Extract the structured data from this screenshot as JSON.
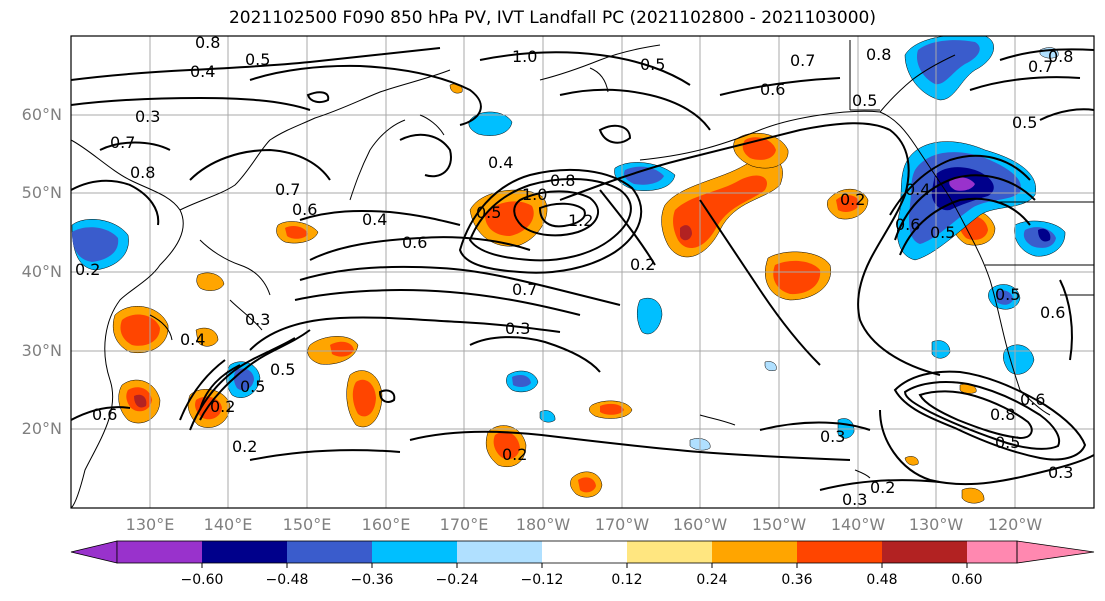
{
  "title": "2021102500 F090 850 hPa PV, IVT Landfall PC (2021102800 - 2021103000)",
  "lat_labels": [
    "60°N",
    "50°N",
    "40°N",
    "30°N",
    "20°N"
  ],
  "lon_labels": [
    "130°E",
    "140°E",
    "150°E",
    "160°E",
    "170°E",
    "180°W",
    "170°W",
    "160°W",
    "150°W",
    "140°W",
    "130°W",
    "120°W"
  ],
  "colorbar": {
    "colors": [
      "#9932cc",
      "#00008b",
      "#3a5ccc",
      "#00bfff",
      "#b0e0ff",
      "#ffffff",
      "#ffe680",
      "#ffa500",
      "#ff4500",
      "#b22222",
      "#ff88b0"
    ],
    "tick_labels": [
      "−0.60",
      "−0.48",
      "−0.36",
      "−0.24",
      "−0.12",
      "0.12",
      "0.24",
      "0.36",
      "0.48",
      "0.60"
    ]
  },
  "contour_labels": [
    "0.8",
    "0.4",
    "0.5",
    "1.0",
    "0.5",
    "0.7",
    "0.8",
    "0.5",
    "0.8",
    "0.7",
    "0.3",
    "0.7",
    "0.8",
    "0.7",
    "0.6",
    "0.4",
    "0.4",
    "0.5",
    "0.8",
    "1.0",
    "1.2",
    "0.6",
    "0.2",
    "0.7",
    "0.3",
    "0.6",
    "0.5",
    "0.4",
    "0.3",
    "0.4",
    "0.2",
    "0.6",
    "0.2",
    "0.6",
    "0.5",
    "0.6",
    "0.5",
    "0.3",
    "0.2",
    "0.3",
    "0.2",
    "0.8",
    "0.6",
    "0.5",
    "0.3",
    "0.5",
    "0.2",
    "0.2",
    "0.5"
  ]
}
